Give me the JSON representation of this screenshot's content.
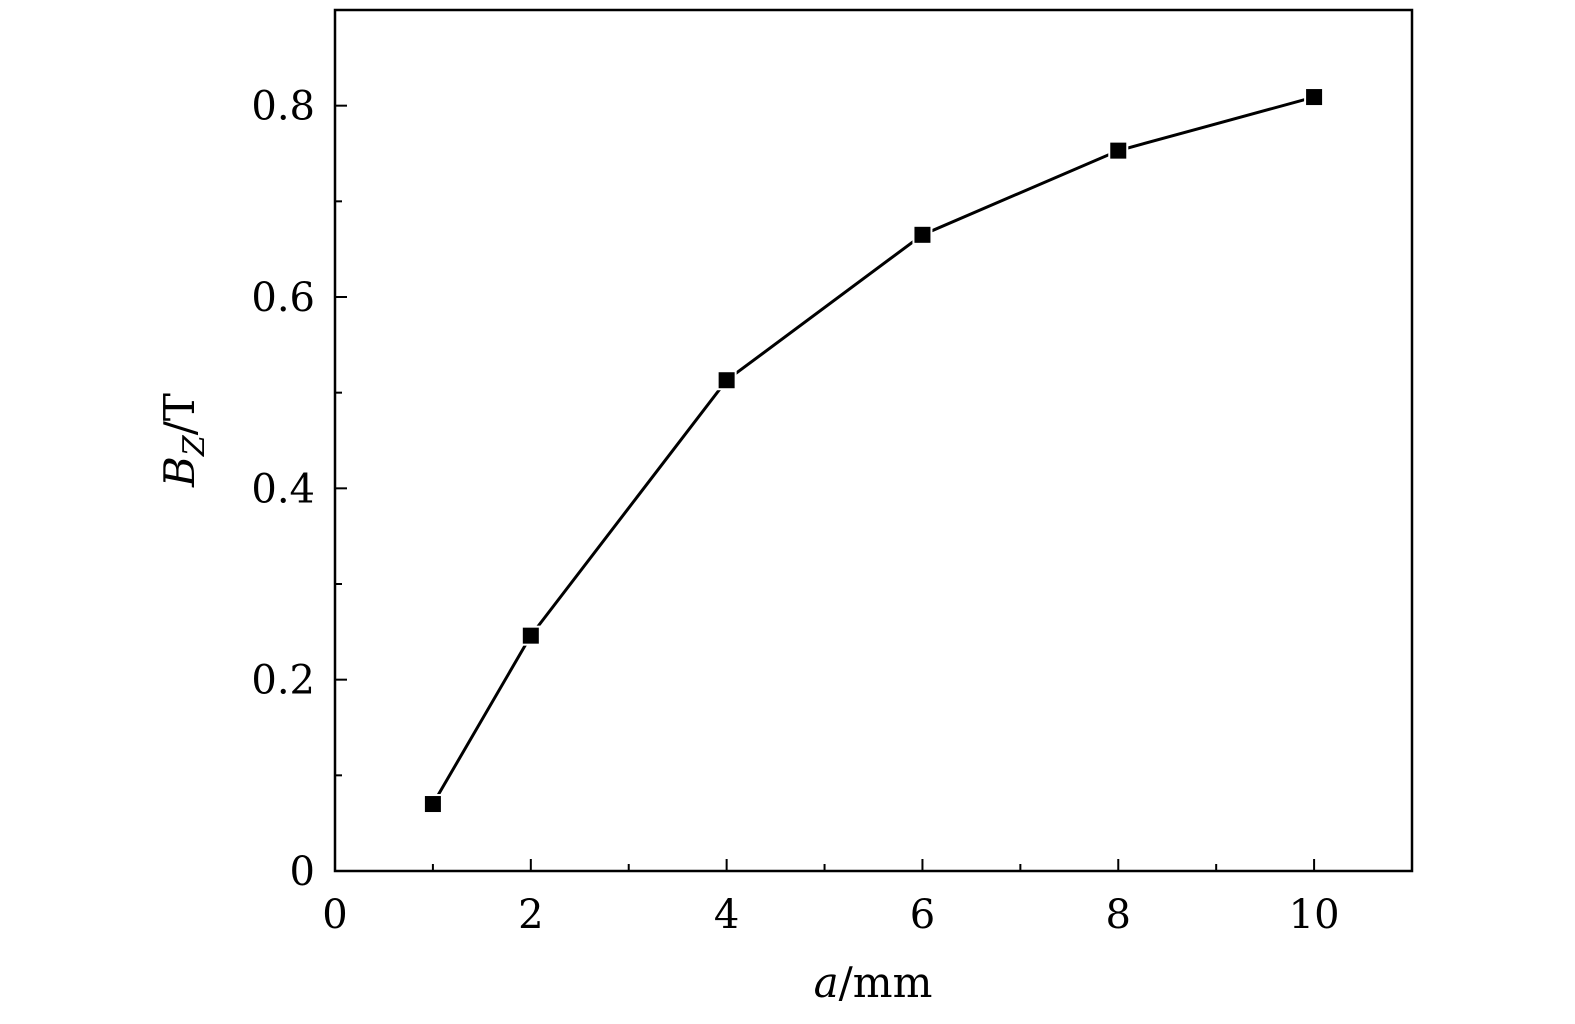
{
  "chart_data": {
    "type": "line",
    "title": "",
    "xlabel": {
      "var": "a",
      "unit": "/mm"
    },
    "ylabel": {
      "var": "B",
      "sub": "Z",
      "unit": "/T"
    },
    "xlim": [
      0,
      11
    ],
    "ylim": [
      0,
      0.9
    ],
    "x_ticks": [
      0,
      2,
      4,
      6,
      8,
      10
    ],
    "x_tick_labels": [
      "0",
      "2",
      "4",
      "6",
      "8",
      "10"
    ],
    "x_minor_ticks": [
      1,
      3,
      5,
      7,
      9
    ],
    "y_ticks": [
      0,
      0.2,
      0.4,
      0.6,
      0.8
    ],
    "y_tick_labels": [
      "0",
      "0.2",
      "0.4",
      "0.6",
      "0.8"
    ],
    "y_minor_ticks": [
      0.1,
      0.3,
      0.5,
      0.7
    ],
    "grid": false,
    "legend": "none",
    "marker": "square",
    "color": "#000000",
    "series": [
      {
        "x": [
          1,
          2,
          4,
          6,
          8,
          10
        ],
        "y": [
          0.07,
          0.246,
          0.513,
          0.665,
          0.753,
          0.809
        ]
      }
    ]
  }
}
